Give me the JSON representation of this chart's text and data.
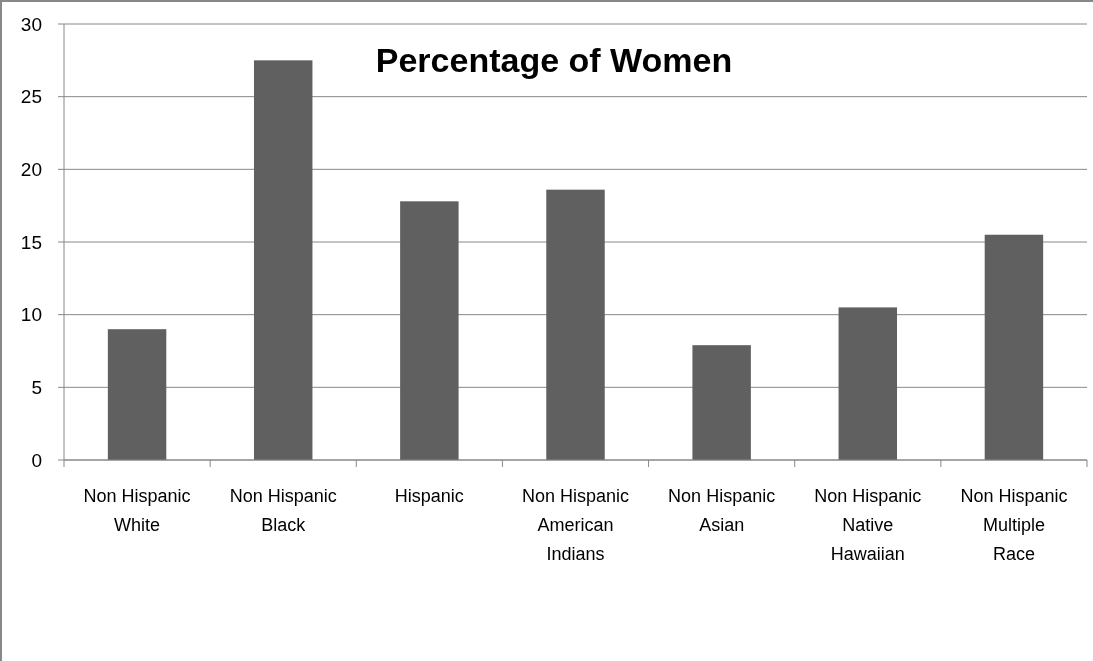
{
  "chart_data": {
    "type": "bar",
    "title": "Percentage of Women",
    "categories": [
      "Non Hispanic White",
      "Non Hispanic Black",
      "Hispanic",
      "Non Hispanic American Indians",
      "Non Hispanic Asian",
      "Non Hispanic Native Hawaiian",
      "Non Hispanic Multiple Race"
    ],
    "values": [
      9.0,
      27.5,
      17.8,
      18.6,
      7.9,
      10.5,
      15.5
    ],
    "color": "#606060",
    "ylim": [
      0,
      30
    ],
    "yticks": [
      0,
      5,
      10,
      15,
      20,
      25,
      30
    ],
    "grid": "y"
  }
}
